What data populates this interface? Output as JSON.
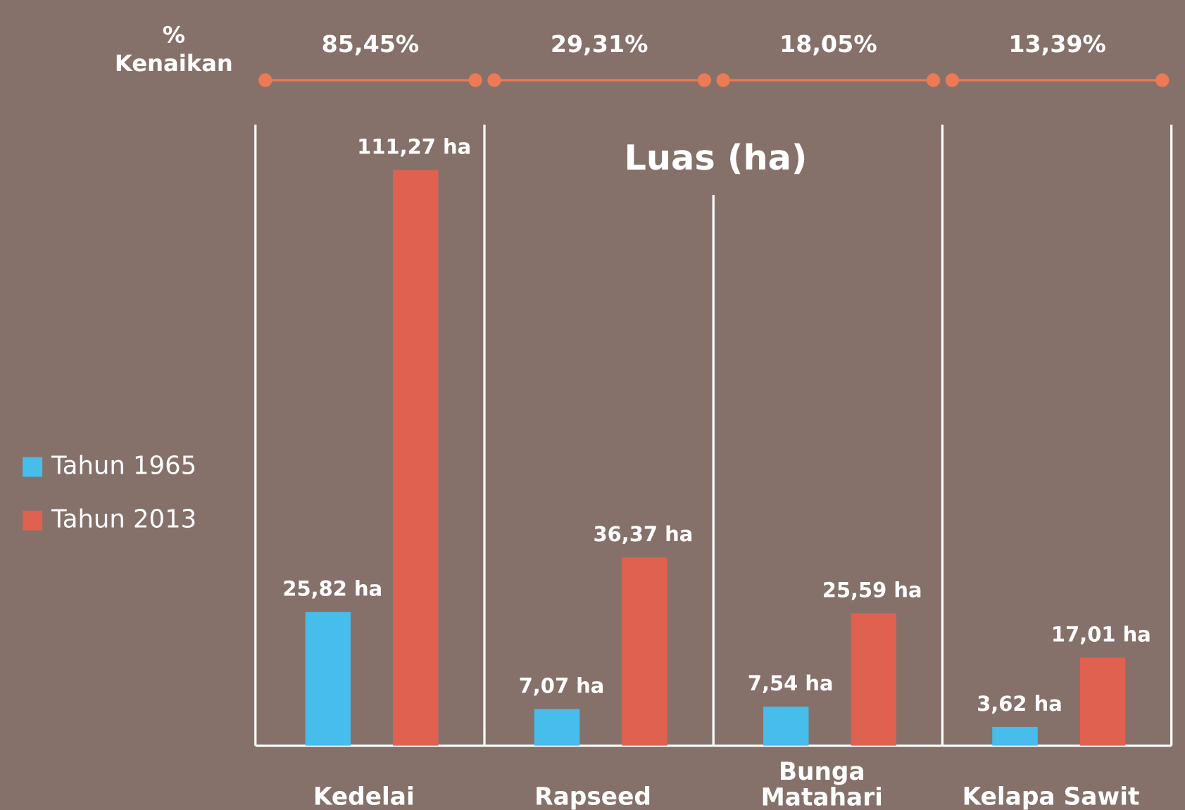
{
  "chart_data": {
    "type": "bar",
    "title": "Luas (ha)",
    "categories": [
      "Kedelai",
      "Rapseed",
      "Bunga Matahari",
      "Kelapa Sawit"
    ],
    "series": [
      {
        "name": "Tahun 1965",
        "color": "#47bdeb",
        "values": [
          25.82,
          7.07,
          7.54,
          3.62
        ],
        "value_labels": [
          "25,82 ha",
          "7,07 ha",
          "7,54 ha",
          "3,62 ha"
        ]
      },
      {
        "name": "Tahun 2013",
        "color": "#e06150",
        "values": [
          111.27,
          36.37,
          25.59,
          17.01
        ],
        "value_labels": [
          "111,27 ha",
          "36,37 ha",
          "25,59 ha",
          "17,01 ha"
        ]
      }
    ],
    "annotations": {
      "title": "% Kenaikan",
      "labels": [
        "85,45%",
        "29,31%",
        "18,05%",
        "13,39%"
      ],
      "color": "#ec7a55"
    },
    "ylim": [
      0,
      120
    ],
    "grid": false,
    "legend": "left"
  }
}
